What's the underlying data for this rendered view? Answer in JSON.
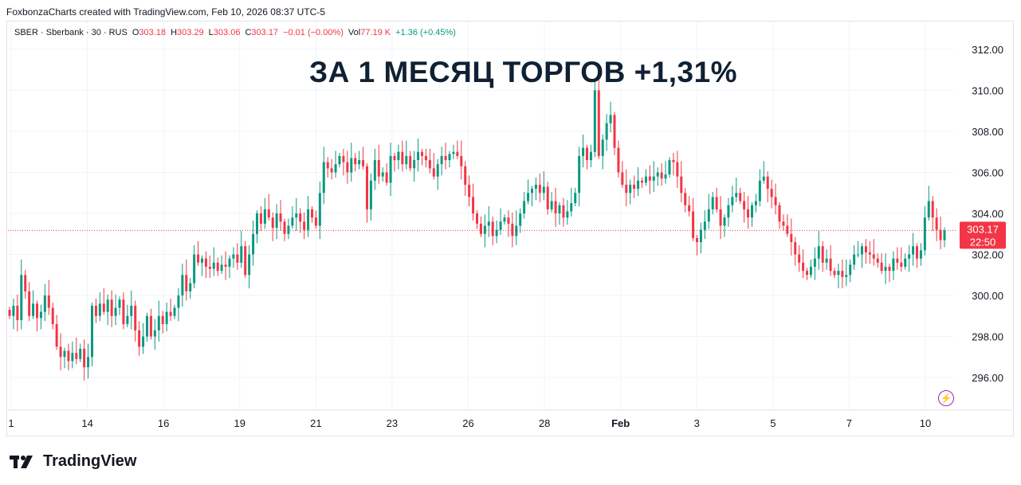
{
  "header": {
    "attribution": "FoxbonzaCharts created with TradingView.com, Feb 10, 2026 08:37 UTC-5"
  },
  "legend": {
    "symbol": "SBER · Sberbank · 30 · RUS",
    "o_label": "O",
    "o_value": "303.18",
    "h_label": "H",
    "h_value": "303.29",
    "l_label": "L",
    "l_value": "303.06",
    "c_label": "C",
    "c_value": "303.17",
    "change": "−0.01 (−0.00%)",
    "vol_label": "Vol",
    "vol_value": "77.19 K",
    "vol_change": "+1.36 (+0.45%)"
  },
  "headline": "ЗА 1 МЕСЯЦ ТОРГОВ +1,31%",
  "price_badge": {
    "price": "303.17",
    "time": "22:50"
  },
  "brand": {
    "name": "TradingView"
  },
  "colors": {
    "up": "#089981",
    "down": "#f23645",
    "last_price": "#f23645",
    "headline": "#0f2132",
    "bolt": "#9c27b0"
  },
  "chart_data": {
    "type": "candlestick",
    "ylim": [
      294.5,
      313.2
    ],
    "y_ticks": [
      296,
      298,
      300,
      302,
      304,
      306,
      308,
      310,
      312
    ],
    "y_tick_labels": [
      "296.00",
      "298.00",
      "300.00",
      "302.00",
      "304.00",
      "306.00",
      "308.00",
      "310.00",
      "312.00"
    ],
    "x_tick_labels": [
      "1",
      "14",
      "16",
      "19",
      "21",
      "23",
      "26",
      "28",
      "Feb",
      "3",
      "5",
      "7",
      "10"
    ],
    "x_tick_bold": [
      false,
      false,
      false,
      false,
      false,
      false,
      false,
      false,
      true,
      false,
      false,
      false,
      false
    ],
    "last_price": 303.17,
    "bars_per_tick": 19,
    "closes": [
      299.0,
      299.5,
      298.8,
      301.0,
      300.2,
      299.0,
      299.6,
      298.9,
      299.2,
      300.0,
      299.4,
      298.6,
      297.5,
      297.0,
      297.3,
      296.8,
      297.2,
      296.9,
      297.4,
      296.5,
      297.0,
      299.5,
      299.0,
      299.6,
      299.2,
      299.8,
      299.0,
      299.4,
      299.8,
      298.6,
      299.0,
      299.5,
      298.3,
      297.5,
      298.0,
      299.0,
      298.0,
      298.3,
      299.0,
      298.6,
      299.2,
      299.0,
      299.4,
      300.0,
      301.0,
      300.2,
      300.6,
      302.0,
      301.6,
      301.8,
      301.4,
      301.3,
      301.6,
      301.2,
      301.5,
      301.4,
      301.8,
      302.0,
      301.6,
      302.4,
      301.0,
      302.0,
      303.0,
      304.0,
      303.5,
      304.2,
      303.8,
      303.3,
      304.0,
      303.6,
      303.0,
      303.4,
      303.8,
      304.0,
      303.6,
      303.2,
      304.2,
      303.8,
      303.4,
      305.0,
      306.5,
      306.2,
      306.0,
      306.4,
      306.8,
      306.5,
      306.0,
      306.7,
      306.4,
      306.6,
      306.3,
      304.2,
      305.6,
      306.6,
      305.8,
      306.0,
      305.5,
      306.8,
      306.6,
      307.0,
      306.4,
      306.8,
      306.2,
      306.6,
      307.0,
      306.8,
      306.6,
      306.2,
      305.8,
      306.4,
      306.8,
      306.6,
      306.9,
      307.0,
      306.8,
      306.3,
      305.4,
      304.8,
      304.0,
      303.5,
      303.0,
      303.4,
      303.6,
      302.9,
      303.2,
      303.6,
      303.8,
      303.5,
      302.9,
      303.4,
      304.0,
      304.6,
      305.0,
      305.2,
      305.4,
      305.0,
      305.3,
      304.2,
      304.6,
      304.0,
      304.4,
      303.8,
      304.1,
      304.5,
      305.0,
      306.8,
      307.2,
      306.6,
      307.0,
      310.0,
      306.8,
      307.6,
      308.4,
      308.8,
      307.2,
      306.0,
      305.4,
      305.0,
      305.4,
      305.2,
      305.6,
      305.5,
      305.8,
      305.6,
      305.8,
      306.0,
      305.7,
      305.9,
      306.6,
      306.5,
      305.8,
      305.0,
      304.4,
      304.1,
      302.8,
      302.6,
      303.2,
      303.6,
      304.2,
      304.8,
      304.2,
      303.4,
      303.8,
      304.4,
      304.8,
      305.0,
      304.6,
      304.2,
      303.8,
      304.4,
      304.6,
      305.6,
      305.8,
      305.2,
      304.8,
      304.4,
      303.6,
      303.4,
      303.0,
      302.6,
      302.0,
      301.6,
      301.2,
      301.0,
      301.4,
      301.8,
      302.4,
      301.6,
      301.8,
      301.2,
      301.0,
      301.2,
      300.9,
      301.0,
      301.5,
      302.0,
      302.0,
      302.4,
      302.1,
      302.0,
      301.8,
      301.6,
      301.2,
      301.4,
      301.2,
      301.8,
      301.6,
      301.4,
      301.8,
      302.0,
      302.4,
      301.8,
      302.2,
      303.8,
      304.6,
      303.8,
      303.2,
      302.7,
      303.17
    ]
  }
}
